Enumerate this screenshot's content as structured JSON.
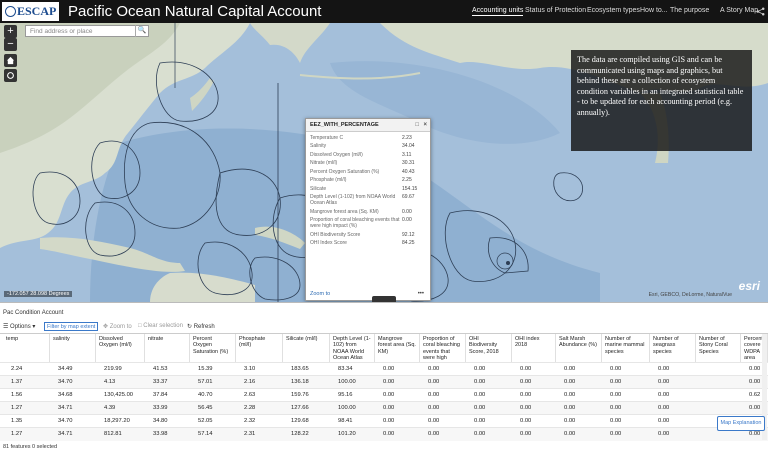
{
  "header": {
    "logo_text": "ESCAP",
    "title": "Pacific Ocean Natural Capital Account",
    "nav": [
      "Accounting units",
      "Status of Protection",
      "Ecosystem types",
      "How to...",
      "The purpose",
      "A Story Map"
    ],
    "share_icon": "share-icon"
  },
  "map": {
    "search_placeholder": "Find address or place",
    "zoom_in": "+",
    "zoom_out": "−",
    "info_text": "The data are compiled using GIS and can be communicated using maps and graphics, but behind these are a collection of ecosystem condition variables in an integrated statistical table - to be updated for each accounting period (e.g. annually).",
    "coords": "-172.057 28.098 Degrees",
    "attribution": "Esri, GEBCO, DeLorme, NaturalVue",
    "esri": "esri",
    "popup": {
      "title": "EEZ_WITH_PERCENTAGE",
      "rows": [
        {
          "k": "Temperature C",
          "v": "2.23"
        },
        {
          "k": "Salinity",
          "v": "34.04"
        },
        {
          "k": "Dissolved Oxygen (ml/l)",
          "v": "3.11"
        },
        {
          "k": "Nitrate (ml/l)",
          "v": "30.31"
        },
        {
          "k": "Percent Oxygen Saturation (%)",
          "v": "40.43"
        },
        {
          "k": "Phosphate (ml/l)",
          "v": "2.25"
        },
        {
          "k": "Silicate",
          "v": "154.15"
        },
        {
          "k": "Depth Level (1-102) from NOAA World Ocean Atlas",
          "v": "69.67"
        },
        {
          "k": "Mangrove forest area (Sq. KM)",
          "v": "0.00"
        },
        {
          "k": "Proportion of coral bleaching events that were high impact (%)",
          "v": "0.00"
        },
        {
          "k": "OHI Biodiversity Score",
          "v": "92.12"
        },
        {
          "k": "OHI Index Score",
          "v": "84.25"
        }
      ],
      "zoom_to": "Zoom to",
      "more": "•••"
    }
  },
  "table": {
    "title": "Pac Condition Account",
    "options": "Options",
    "filter": "Filter by map extent",
    "zoom_to": "Zoom to",
    "clear_selection": "Clear selection",
    "refresh": "Refresh",
    "columns": [
      "temp",
      "salinity",
      "Dissolved Oxygen (ml/l)",
      "nitrate",
      "Percent Oxygen Saturation (%)",
      "Phosphate (ml/l)",
      "Silicate (ml/l)",
      "Depth Level (1-102) from NOAA World Ocean Atlas",
      "Mangrove forest area (Sq. KM)",
      "Proportion of coral bleaching events that were high impact (%)",
      "OHI Biodiversity Score, 2018",
      "OHI index 2018",
      "Salt Marsh Abundance (%)",
      "Number of marine mammal species",
      "Number of seagrass species",
      "Number of Stony Coral Species",
      "Percent covere WDPA area"
    ],
    "rows": [
      [
        "2.24",
        "34.49",
        "219.99",
        "41.53",
        "15.39",
        "3.10",
        "183.65",
        "83.34",
        "0.00",
        "0.00",
        "0.00",
        "0.00",
        "0.00",
        "0.00",
        "0.00",
        "",
        "0.00"
      ],
      [
        "1.37",
        "34.70",
        "4.13",
        "33.37",
        "57.01",
        "2.16",
        "136.18",
        "100.00",
        "0.00",
        "0.00",
        "0.00",
        "0.00",
        "0.00",
        "0.00",
        "0.00",
        "",
        "0.00"
      ],
      [
        "1.56",
        "34.68",
        "130,425.00",
        "37.84",
        "40.70",
        "2.63",
        "159.76",
        "95.16",
        "0.00",
        "0.00",
        "0.00",
        "0.00",
        "0.00",
        "0.00",
        "0.00",
        "",
        "0.62"
      ],
      [
        "1.27",
        "34.71",
        "4.39",
        "33.99",
        "56.45",
        "2.28",
        "127.66",
        "100.00",
        "0.00",
        "0.00",
        "0.00",
        "0.00",
        "0.00",
        "0.00",
        "0.00",
        "",
        "0.00"
      ],
      [
        "1.35",
        "34.70",
        "18,297.20",
        "34.80",
        "52.05",
        "2.32",
        "129.68",
        "98.41",
        "0.00",
        "0.00",
        "0.00",
        "0.00",
        "0.00",
        "0.00",
        "0.00",
        "",
        "0.00"
      ],
      [
        "1.27",
        "34.71",
        "812.81",
        "33.98",
        "57.14",
        "2.31",
        "128.22",
        "101.20",
        "0.00",
        "0.00",
        "0.00",
        "0.00",
        "0.00",
        "0.00",
        "0.00",
        "",
        "0.00"
      ]
    ],
    "map_explanation": "Map Explanation",
    "footer": "81 features 0 selected"
  }
}
